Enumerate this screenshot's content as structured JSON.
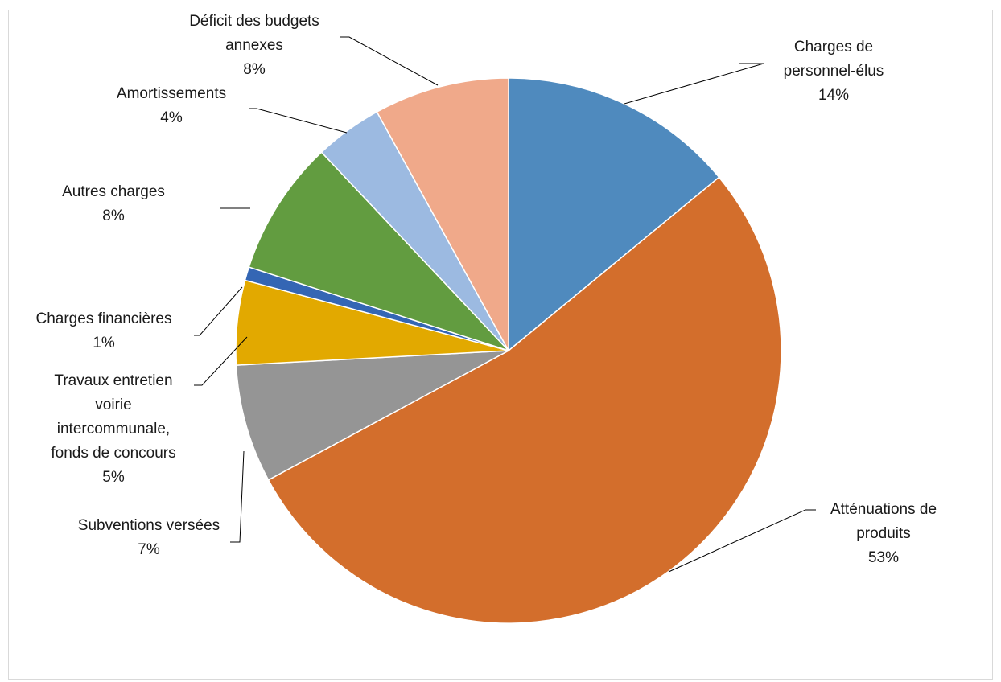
{
  "chart_data": {
    "type": "pie",
    "title": "",
    "slices": [
      {
        "label_lines": [
          "Charges de",
          "personnel-élus"
        ],
        "percent_label": "14%",
        "value": 14,
        "color": "#4f8abe"
      },
      {
        "label_lines": [
          "Atténuations de",
          "produits"
        ],
        "percent_label": "53%",
        "value": 53,
        "color": "#d36e2c"
      },
      {
        "label_lines": [
          "Subventions versées"
        ],
        "percent_label": "7%",
        "value": 7,
        "color": "#959595"
      },
      {
        "label_lines": [
          "Travaux entretien",
          "voirie",
          "intercommunale,",
          "fonds de concours"
        ],
        "percent_label": "5%",
        "value": 5,
        "color": "#e2a900"
      },
      {
        "label_lines": [
          "Charges financières"
        ],
        "percent_label": "1%",
        "value": 0.8,
        "color": "#3466b4"
      },
      {
        "label_lines": [
          "Autres charges"
        ],
        "percent_label": "8%",
        "value": 8,
        "color": "#629c40"
      },
      {
        "label_lines": [
          "Amortissements"
        ],
        "percent_label": "4%",
        "value": 4,
        "color": "#9cbae1"
      },
      {
        "label_lines": [
          "Déficit des budgets",
          "annexes"
        ],
        "percent_label": "8%",
        "value": 8,
        "color": "#f0a98a"
      }
    ],
    "legend": "none",
    "start_angle": "12 o'clock",
    "direction": "clockwise"
  }
}
